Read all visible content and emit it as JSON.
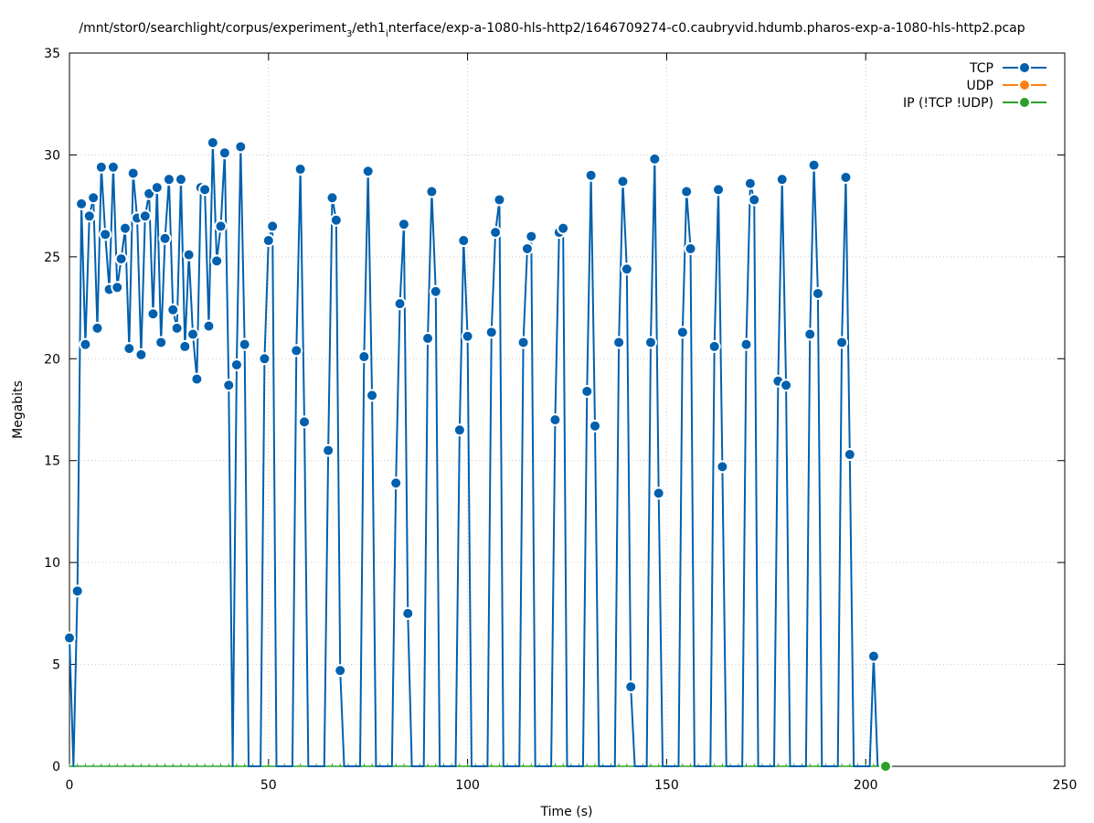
{
  "chart_data": {
    "type": "line",
    "title": {
      "pre": "/mnt/stor0/searchlight/corpus/experiment",
      "sub1": "3",
      "mid": "/eth1",
      "sub2": "i",
      "post": "nterface/exp-a-1080-hls-http2/1646709274-c0.caubryvid.hdumb.pharos-exp-a-1080-hls-http2.pcap"
    },
    "xlabel": "Time (s)",
    "ylabel": "Megabits",
    "xlim": [
      0,
      250
    ],
    "ylim": [
      0,
      35
    ],
    "xticks": [
      0,
      50,
      100,
      150,
      200,
      250
    ],
    "yticks": [
      0,
      5,
      10,
      15,
      20,
      25,
      30,
      35
    ],
    "grid": true,
    "legend_position": "top-right",
    "series": [
      {
        "name": "TCP",
        "color": "#0060ad",
        "points": [
          [
            0,
            6.3
          ],
          [
            1,
            0
          ],
          [
            2,
            8.6
          ],
          [
            3,
            27.6
          ],
          [
            4,
            20.7
          ],
          [
            5,
            27.0
          ],
          [
            6,
            27.9
          ],
          [
            7,
            21.5
          ],
          [
            8,
            29.4
          ],
          [
            9,
            26.1
          ],
          [
            10,
            23.4
          ],
          [
            11,
            29.4
          ],
          [
            12,
            23.5
          ],
          [
            13,
            24.9
          ],
          [
            14,
            26.4
          ],
          [
            15,
            20.5
          ],
          [
            16,
            29.1
          ],
          [
            17,
            26.9
          ],
          [
            18,
            20.2
          ],
          [
            19,
            27.0
          ],
          [
            20,
            28.1
          ],
          [
            21,
            22.2
          ],
          [
            22,
            28.4
          ],
          [
            23,
            20.8
          ],
          [
            24,
            25.9
          ],
          [
            25,
            28.8
          ],
          [
            26,
            22.4
          ],
          [
            27,
            21.5
          ],
          [
            28,
            28.8
          ],
          [
            29,
            20.6
          ],
          [
            30,
            25.1
          ],
          [
            31,
            21.2
          ],
          [
            32,
            19.0
          ],
          [
            33,
            28.4
          ],
          [
            34,
            28.3
          ],
          [
            35,
            21.6
          ],
          [
            36,
            30.6
          ],
          [
            37,
            24.8
          ],
          [
            38,
            26.5
          ],
          [
            39,
            30.1
          ],
          [
            40,
            18.7
          ],
          [
            41,
            0
          ],
          [
            42,
            19.7
          ],
          [
            43,
            30.4
          ],
          [
            44,
            20.7
          ],
          [
            45,
            0
          ],
          [
            48,
            0
          ],
          [
            49,
            20.0
          ],
          [
            50,
            25.8
          ],
          [
            51,
            26.5
          ],
          [
            52,
            0
          ],
          [
            56,
            0
          ],
          [
            57,
            20.4
          ],
          [
            58,
            29.3
          ],
          [
            59,
            16.9
          ],
          [
            60,
            0
          ],
          [
            64,
            0
          ],
          [
            65,
            15.5
          ],
          [
            66,
            27.9
          ],
          [
            67,
            26.8
          ],
          [
            68,
            4.7
          ],
          [
            69,
            0
          ],
          [
            73,
            0
          ],
          [
            74,
            20.1
          ],
          [
            75,
            29.2
          ],
          [
            76,
            18.2
          ],
          [
            77,
            0
          ],
          [
            81,
            0
          ],
          [
            82,
            13.9
          ],
          [
            83,
            22.7
          ],
          [
            84,
            26.6
          ],
          [
            85,
            7.5
          ],
          [
            86,
            0
          ],
          [
            89,
            0
          ],
          [
            90,
            21.0
          ],
          [
            91,
            28.2
          ],
          [
            92,
            23.3
          ],
          [
            93,
            0
          ],
          [
            97,
            0
          ],
          [
            98,
            16.5
          ],
          [
            99,
            25.8
          ],
          [
            100,
            21.1
          ],
          [
            101,
            0
          ],
          [
            105,
            0
          ],
          [
            106,
            21.3
          ],
          [
            107,
            26.2
          ],
          [
            108,
            27.8
          ],
          [
            109,
            0
          ],
          [
            113,
            0
          ],
          [
            114,
            20.8
          ],
          [
            115,
            25.4
          ],
          [
            116,
            26.0
          ],
          [
            117,
            0
          ],
          [
            121,
            0
          ],
          [
            122,
            17.0
          ],
          [
            123,
            26.2
          ],
          [
            124,
            26.4
          ],
          [
            125,
            0
          ],
          [
            129,
            0
          ],
          [
            130,
            18.4
          ],
          [
            131,
            29.0
          ],
          [
            132,
            16.7
          ],
          [
            133,
            0
          ],
          [
            137,
            0
          ],
          [
            138,
            20.8
          ],
          [
            139,
            28.7
          ],
          [
            140,
            24.4
          ],
          [
            141,
            3.9
          ],
          [
            142,
            0
          ],
          [
            145,
            0
          ],
          [
            146,
            20.8
          ],
          [
            147,
            29.8
          ],
          [
            148,
            13.4
          ],
          [
            149,
            0
          ],
          [
            153,
            0
          ],
          [
            154,
            21.3
          ],
          [
            155,
            28.2
          ],
          [
            156,
            25.4
          ],
          [
            157,
            0
          ],
          [
            161,
            0
          ],
          [
            162,
            20.6
          ],
          [
            163,
            28.3
          ],
          [
            164,
            14.7
          ],
          [
            165,
            0
          ],
          [
            169,
            0
          ],
          [
            170,
            20.7
          ],
          [
            171,
            28.6
          ],
          [
            172,
            27.8
          ],
          [
            173,
            0
          ],
          [
            177,
            0
          ],
          [
            178,
            18.9
          ],
          [
            179,
            28.8
          ],
          [
            180,
            18.7
          ],
          [
            181,
            0
          ],
          [
            185,
            0
          ],
          [
            186,
            21.2
          ],
          [
            187,
            29.5
          ],
          [
            188,
            23.2
          ],
          [
            189,
            0
          ],
          [
            193,
            0
          ],
          [
            194,
            20.8
          ],
          [
            195,
            28.9
          ],
          [
            196,
            15.3
          ],
          [
            197,
            0
          ],
          [
            201,
            0
          ],
          [
            202,
            5.4
          ],
          [
            203,
            0
          ]
        ]
      },
      {
        "name": "UDP",
        "color": "#ff7f0e",
        "points": []
      },
      {
        "name": "IP (!TCP  !UDP)",
        "color": "#2ca02c",
        "points": [
          [
            0,
            0
          ],
          [
            2,
            0
          ],
          [
            4,
            0
          ],
          [
            6,
            0
          ],
          [
            8,
            0
          ],
          [
            10,
            0
          ],
          [
            12,
            0
          ],
          [
            14,
            0
          ],
          [
            16,
            0
          ],
          [
            18,
            0
          ],
          [
            20,
            0
          ],
          [
            22,
            0
          ],
          [
            24,
            0
          ],
          [
            26,
            0
          ],
          [
            28,
            0
          ],
          [
            30,
            0
          ],
          [
            32,
            0
          ],
          [
            34,
            0
          ],
          [
            36,
            0
          ],
          [
            38,
            0
          ],
          [
            40,
            0
          ],
          [
            42,
            0
          ],
          [
            44,
            0
          ],
          [
            46,
            0
          ],
          [
            48,
            0
          ],
          [
            50,
            0
          ],
          [
            52,
            0
          ],
          [
            54,
            0
          ],
          [
            56,
            0
          ],
          [
            58,
            0
          ],
          [
            60,
            0
          ],
          [
            62,
            0
          ],
          [
            64,
            0
          ],
          [
            66,
            0
          ],
          [
            68,
            0
          ],
          [
            70,
            0
          ],
          [
            72,
            0
          ],
          [
            74,
            0
          ],
          [
            76,
            0
          ],
          [
            78,
            0
          ],
          [
            80,
            0
          ],
          [
            82,
            0
          ],
          [
            84,
            0
          ],
          [
            86,
            0
          ],
          [
            88,
            0
          ],
          [
            90,
            0
          ],
          [
            92,
            0
          ],
          [
            94,
            0
          ],
          [
            96,
            0
          ],
          [
            98,
            0
          ],
          [
            100,
            0
          ],
          [
            102,
            0
          ],
          [
            104,
            0
          ],
          [
            106,
            0
          ],
          [
            108,
            0
          ],
          [
            110,
            0
          ],
          [
            112,
            0
          ],
          [
            114,
            0
          ],
          [
            116,
            0
          ],
          [
            118,
            0
          ],
          [
            120,
            0
          ],
          [
            122,
            0
          ],
          [
            124,
            0
          ],
          [
            126,
            0
          ],
          [
            128,
            0
          ],
          [
            130,
            0
          ],
          [
            132,
            0
          ],
          [
            134,
            0
          ],
          [
            136,
            0
          ],
          [
            138,
            0
          ],
          [
            140,
            0
          ],
          [
            142,
            0
          ],
          [
            144,
            0
          ],
          [
            146,
            0
          ],
          [
            148,
            0
          ],
          [
            150,
            0
          ],
          [
            152,
            0
          ],
          [
            154,
            0
          ],
          [
            156,
            0
          ],
          [
            158,
            0
          ],
          [
            160,
            0
          ],
          [
            162,
            0
          ],
          [
            164,
            0
          ],
          [
            166,
            0
          ],
          [
            168,
            0
          ],
          [
            170,
            0
          ],
          [
            172,
            0
          ],
          [
            174,
            0
          ],
          [
            176,
            0
          ],
          [
            178,
            0
          ],
          [
            180,
            0
          ],
          [
            182,
            0
          ],
          [
            184,
            0
          ],
          [
            186,
            0
          ],
          [
            188,
            0
          ],
          [
            190,
            0
          ],
          [
            192,
            0
          ],
          [
            194,
            0
          ],
          [
            196,
            0
          ],
          [
            198,
            0
          ],
          [
            200,
            0
          ],
          [
            202,
            0
          ],
          [
            205,
            0
          ]
        ],
        "marker_points": [
          [
            205,
            0
          ]
        ]
      }
    ]
  }
}
